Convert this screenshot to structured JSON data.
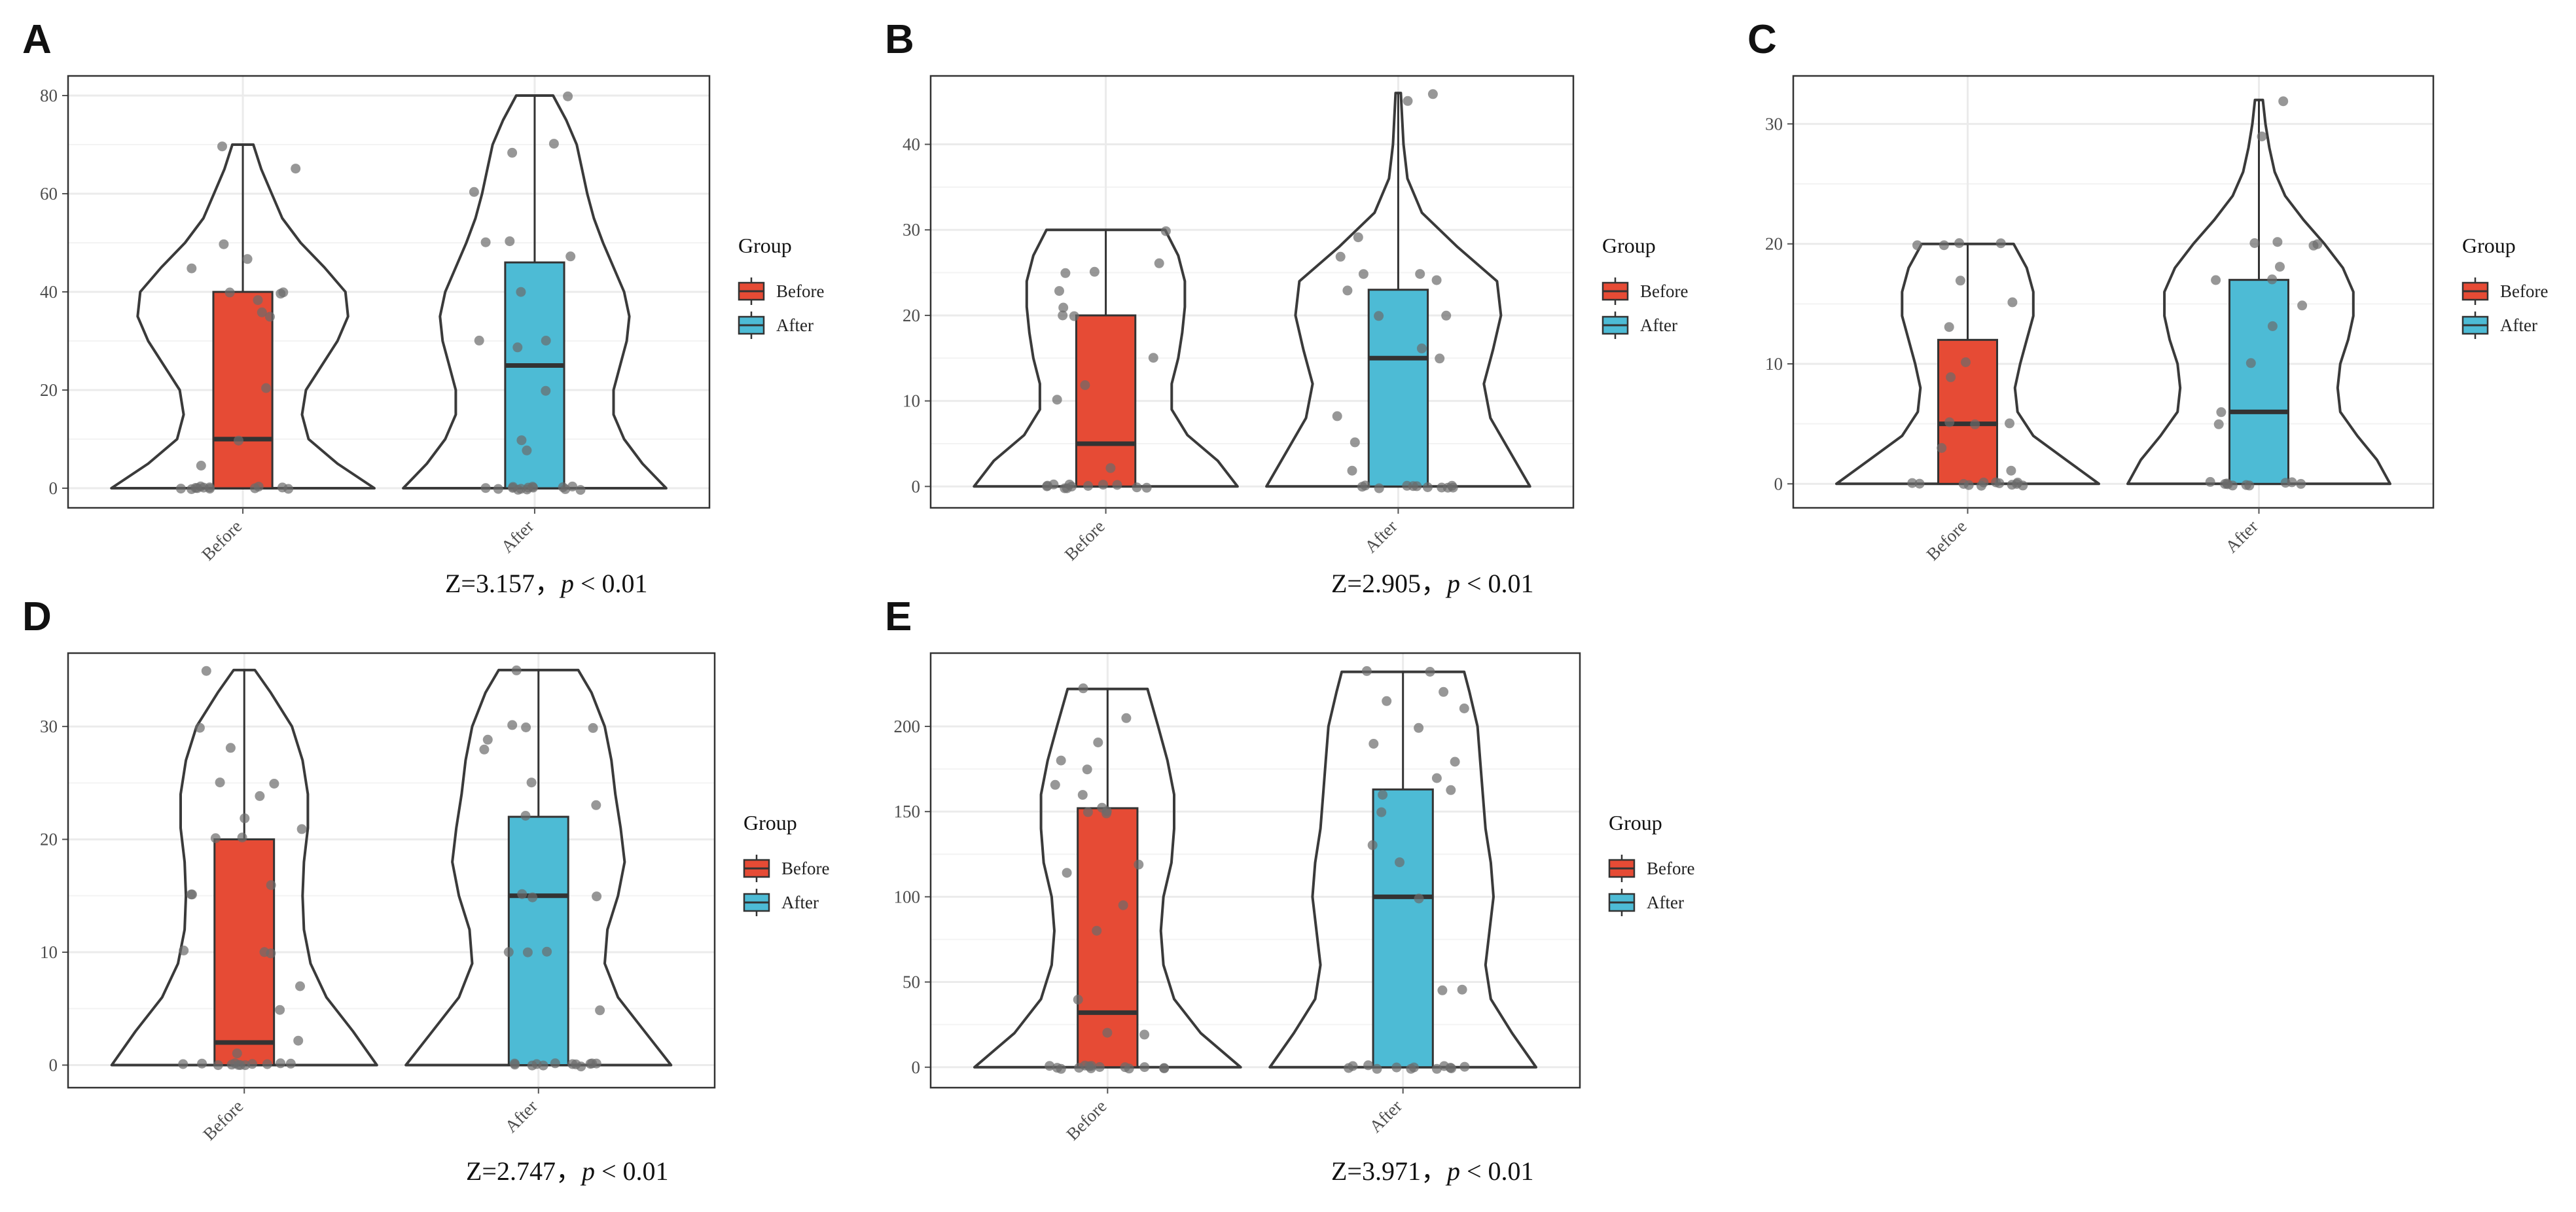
{
  "figure": {
    "colors": {
      "before": "#e64b35",
      "after": "#4dbbd5",
      "outline": "#333333",
      "violin": "#3a3a3a",
      "point": "#6b6b6b",
      "grid": "#ebebeb",
      "panel_border": "#333333"
    },
    "legend": {
      "title": "Group",
      "items": [
        "Before",
        "After"
      ]
    }
  },
  "chart_data": [
    {
      "id": "A",
      "type": "violin-box",
      "categories": [
        "Before",
        "After"
      ],
      "ylim": [
        -4,
        84
      ],
      "yticks": [
        0,
        20,
        40,
        60,
        80
      ],
      "stat": {
        "z": "Z=3.157，",
        "p_symbol": "p",
        "p_text": " < 0.01"
      },
      "series": [
        {
          "name": "Before",
          "box": {
            "min": 0,
            "q1": 0,
            "median": 10,
            "q3": 40,
            "max": 70
          },
          "violin": {
            "y": [
              0,
              5,
              10,
              15,
              20,
              25,
              30,
              35,
              40,
              45,
              50,
              55,
              60,
              65,
              70
            ],
            "w": [
              1.0,
              0.72,
              0.5,
              0.45,
              0.48,
              0.6,
              0.72,
              0.8,
              0.78,
              0.62,
              0.44,
              0.3,
              0.22,
              0.14,
              0.08
            ]
          },
          "points": [
            0,
            0,
            0,
            0,
            0,
            0,
            0,
            0,
            0,
            0,
            0,
            0,
            5,
            10,
            20,
            35,
            36,
            38,
            40,
            40,
            40,
            45,
            47,
            50,
            65,
            70
          ]
        },
        {
          "name": "After",
          "box": {
            "min": 0,
            "q1": 0,
            "median": 25,
            "q3": 46,
            "max": 80
          },
          "violin": {
            "y": [
              0,
              5,
              10,
              15,
              20,
              25,
              30,
              35,
              40,
              45,
              50,
              55,
              60,
              65,
              70,
              75,
              80
            ],
            "w": [
              1.0,
              0.82,
              0.68,
              0.6,
              0.6,
              0.65,
              0.7,
              0.72,
              0.68,
              0.6,
              0.52,
              0.45,
              0.4,
              0.36,
              0.32,
              0.24,
              0.14
            ]
          },
          "points": [
            0,
            0,
            0,
            0,
            0,
            0,
            0,
            0,
            0,
            0,
            0,
            0,
            0,
            0,
            8,
            10,
            20,
            29,
            30,
            30,
            40,
            47,
            50,
            50,
            60,
            68,
            70,
            80
          ]
        }
      ]
    },
    {
      "id": "B",
      "type": "violin-box",
      "categories": [
        "Before",
        "After"
      ],
      "ylim": [
        -2.5,
        48
      ],
      "yticks": [
        0,
        10,
        20,
        30,
        40
      ],
      "stat": {
        "z": "Z=2.905，",
        "p_symbol": "p",
        "p_text": " < 0.01"
      },
      "series": [
        {
          "name": "Before",
          "box": {
            "min": 0,
            "q1": 0,
            "median": 5,
            "q3": 20,
            "max": 30
          },
          "violin": {
            "y": [
              0,
              3,
              6,
              9,
              12,
              15,
              18,
              21,
              24,
              27,
              30
            ],
            "w": [
              1.0,
              0.85,
              0.62,
              0.5,
              0.5,
              0.55,
              0.58,
              0.6,
              0.6,
              0.55,
              0.45
            ]
          },
          "points": [
            0,
            0,
            0,
            0,
            0,
            0,
            0,
            0,
            0,
            0,
            0,
            0,
            2,
            10,
            12,
            15,
            20,
            20,
            21,
            23,
            25,
            25,
            26,
            30
          ]
        },
        {
          "name": "After",
          "box": {
            "min": 0,
            "q1": 0,
            "median": 15,
            "q3": 23,
            "max": 46
          },
          "violin": {
            "y": [
              0,
              4,
              8,
              12,
              16,
              20,
              24,
              28,
              32,
              36,
              40,
              43,
              46
            ],
            "w": [
              1.0,
              0.85,
              0.7,
              0.65,
              0.72,
              0.78,
              0.75,
              0.45,
              0.18,
              0.07,
              0.04,
              0.03,
              0.02
            ]
          },
          "points": [
            0,
            0,
            0,
            0,
            0,
            0,
            0,
            0,
            0,
            0,
            0,
            2,
            5,
            8,
            15,
            16,
            20,
            20,
            23,
            24,
            25,
            25,
            27,
            29,
            45,
            46
          ]
        }
      ]
    },
    {
      "id": "C",
      "type": "violin-box",
      "categories": [
        "Before",
        "After"
      ],
      "ylim": [
        -2,
        34
      ],
      "yticks": [
        0,
        10,
        20,
        30
      ],
      "stat": null,
      "series": [
        {
          "name": "Before",
          "box": {
            "min": 0,
            "q1": 0,
            "median": 5,
            "q3": 12,
            "max": 20
          },
          "violin": {
            "y": [
              0,
              2,
              4,
              6,
              8,
              10,
              12,
              14,
              16,
              18,
              20
            ],
            "w": [
              1.0,
              0.75,
              0.5,
              0.38,
              0.36,
              0.4,
              0.45,
              0.5,
              0.5,
              0.45,
              0.35
            ]
          },
          "points": [
            0,
            0,
            0,
            0,
            0,
            0,
            0,
            0,
            0,
            0,
            0,
            0,
            1,
            3,
            5,
            5,
            5,
            9,
            10,
            13,
            15,
            17,
            20,
            20,
            20,
            20
          ]
        },
        {
          "name": "After",
          "box": {
            "min": 0,
            "q1": 0,
            "median": 6,
            "q3": 17,
            "max": 32
          },
          "violin": {
            "y": [
              0,
              2,
              4,
              6,
              8,
              10,
              12,
              14,
              16,
              18,
              20,
              22,
              24,
              26,
              28,
              30,
              32
            ],
            "w": [
              1.0,
              0.9,
              0.75,
              0.62,
              0.6,
              0.62,
              0.68,
              0.72,
              0.72,
              0.64,
              0.5,
              0.34,
              0.2,
              0.12,
              0.08,
              0.05,
              0.03
            ]
          },
          "points": [
            0,
            0,
            0,
            0,
            0,
            0,
            0,
            0,
            0,
            0,
            5,
            6,
            10,
            13,
            15,
            17,
            17,
            18,
            20,
            20,
            20,
            20,
            29,
            32
          ]
        }
      ]
    },
    {
      "id": "D",
      "type": "violin-box",
      "categories": [
        "Before",
        "After"
      ],
      "ylim": [
        -2,
        36.5
      ],
      "yticks": [
        0,
        10,
        20,
        30
      ],
      "stat": {
        "z": "Z=2.747，",
        "p_symbol": "p",
        "p_text": " < 0.01"
      },
      "series": [
        {
          "name": "Before",
          "box": {
            "min": 0,
            "q1": 0,
            "median": 2,
            "q3": 20,
            "max": 35
          },
          "violin": {
            "y": [
              0,
              3,
              6,
              9,
              12,
              15,
              18,
              21,
              24,
              27,
              30,
              33,
              35
            ],
            "w": [
              1.0,
              0.82,
              0.62,
              0.5,
              0.45,
              0.44,
              0.45,
              0.48,
              0.48,
              0.44,
              0.36,
              0.2,
              0.08
            ]
          },
          "points": [
            0,
            0,
            0,
            0,
            0,
            0,
            0,
            0,
            0,
            0,
            0,
            0,
            1,
            2,
            5,
            7,
            10,
            10,
            10,
            15,
            15,
            16,
            20,
            20,
            21,
            22,
            24,
            25,
            25,
            28,
            30,
            35
          ]
        },
        {
          "name": "After",
          "box": {
            "min": 0,
            "q1": 0,
            "median": 15,
            "q3": 22,
            "max": 35
          },
          "violin": {
            "y": [
              0,
              3,
              6,
              9,
              12,
              15,
              18,
              21,
              24,
              27,
              30,
              33,
              35
            ],
            "w": [
              1.0,
              0.8,
              0.6,
              0.5,
              0.52,
              0.6,
              0.65,
              0.62,
              0.58,
              0.55,
              0.5,
              0.4,
              0.3
            ]
          },
          "points": [
            0,
            0,
            0,
            0,
            0,
            0,
            0,
            0,
            0,
            0,
            0,
            0,
            5,
            10,
            10,
            10,
            15,
            15,
            15,
            22,
            23,
            25,
            28,
            29,
            30,
            30,
            30,
            35
          ]
        }
      ]
    },
    {
      "id": "E",
      "type": "violin-box",
      "categories": [
        "Before",
        "After"
      ],
      "ylim": [
        -12,
        243
      ],
      "yticks": [
        0,
        50,
        100,
        150,
        200
      ],
      "stat": {
        "z": "Z=3.971，",
        "p_symbol": "p",
        "p_text": " < 0.01"
      },
      "series": [
        {
          "name": "Before",
          "box": {
            "min": 0,
            "q1": 0,
            "median": 32,
            "q3": 152,
            "max": 222
          },
          "violin": {
            "y": [
              0,
              20,
              40,
              60,
              80,
              100,
              120,
              140,
              160,
              180,
              200,
              222
            ],
            "w": [
              1.0,
              0.7,
              0.5,
              0.42,
              0.4,
              0.42,
              0.48,
              0.5,
              0.5,
              0.45,
              0.38,
              0.3
            ]
          },
          "points": [
            0,
            0,
            0,
            0,
            0,
            0,
            0,
            0,
            0,
            0,
            0,
            0,
            0,
            0,
            18,
            20,
            40,
            80,
            95,
            115,
            118,
            148,
            150,
            150,
            152,
            160,
            165,
            175,
            180,
            190,
            205,
            222
          ]
        },
        {
          "name": "After",
          "box": {
            "min": 0,
            "q1": 0,
            "median": 100,
            "q3": 163,
            "max": 232
          },
          "violin": {
            "y": [
              0,
              20,
              40,
              60,
              80,
              100,
              120,
              140,
              160,
              180,
              200,
              220,
              232
            ],
            "w": [
              1.0,
              0.82,
              0.66,
              0.62,
              0.65,
              0.68,
              0.66,
              0.62,
              0.6,
              0.58,
              0.56,
              0.5,
              0.46
            ]
          },
          "points": [
            0,
            0,
            0,
            0,
            0,
            0,
            0,
            0,
            0,
            0,
            0,
            0,
            45,
            45,
            100,
            120,
            130,
            150,
            160,
            162,
            170,
            180,
            190,
            200,
            210,
            215,
            220,
            232,
            232
          ]
        }
      ]
    }
  ]
}
